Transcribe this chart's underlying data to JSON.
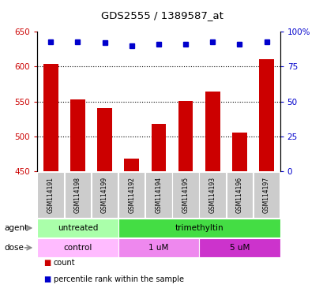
{
  "title": "GDS2555 / 1389587_at",
  "samples": [
    "GSM114191",
    "GSM114198",
    "GSM114199",
    "GSM114192",
    "GSM114194",
    "GSM114195",
    "GSM114193",
    "GSM114196",
    "GSM114197"
  ],
  "bar_values": [
    604,
    553,
    540,
    468,
    518,
    551,
    564,
    505,
    611
  ],
  "percentile_values": [
    93,
    93,
    92,
    90,
    91,
    91,
    93,
    91,
    93
  ],
  "bar_color": "#cc0000",
  "dot_color": "#0000cc",
  "ylim_left": [
    450,
    650
  ],
  "ylim_right": [
    0,
    100
  ],
  "yticks_left": [
    450,
    500,
    550,
    600,
    650
  ],
  "yticks_right": [
    0,
    25,
    50,
    75,
    100
  ],
  "ytick_labels_right": [
    "0",
    "25",
    "50",
    "75",
    "100%"
  ],
  "agent_groups": [
    {
      "label": "untreated",
      "start": 0,
      "end": 3,
      "color": "#aaffaa"
    },
    {
      "label": "trimethyltin",
      "start": 3,
      "end": 9,
      "color": "#44dd44"
    }
  ],
  "dose_groups": [
    {
      "label": "control",
      "start": 0,
      "end": 3,
      "color": "#ffbbff"
    },
    {
      "label": "1 uM",
      "start": 3,
      "end": 6,
      "color": "#ee88ee"
    },
    {
      "label": "5 uM",
      "start": 6,
      "end": 9,
      "color": "#cc33cc"
    }
  ],
  "legend_items": [
    {
      "color": "#cc0000",
      "label": "count"
    },
    {
      "color": "#0000cc",
      "label": "percentile rank within the sample"
    }
  ],
  "label_agent": "agent",
  "label_dose": "dose",
  "tick_color_left": "#cc0000",
  "tick_color_right": "#0000cc",
  "bar_bottom": 450,
  "grid_lines": [
    500,
    550,
    600
  ],
  "sample_label_bg": "#cccccc"
}
